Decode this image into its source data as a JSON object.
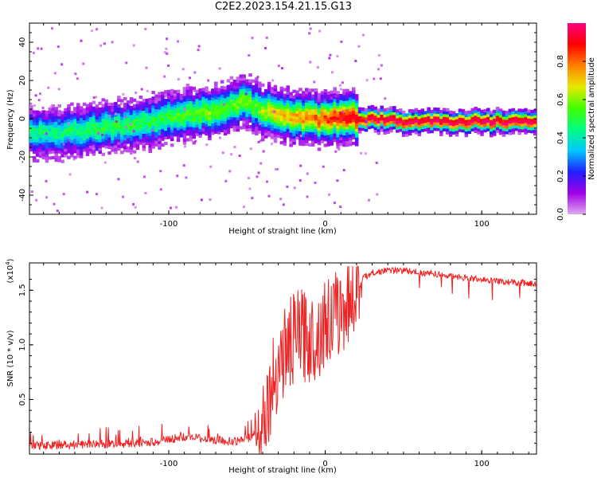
{
  "title": "C2E2.2023.154.21.15.G13",
  "chart_data": [
    {
      "type": "heatmap",
      "xlabel": "Height of straight line (km)",
      "ylabel": "Frequency (Hz)",
      "xlim": [
        -189,
        135
      ],
      "ylim": [
        -50,
        50
      ],
      "x_ticks": [
        -100,
        0,
        100
      ],
      "y_ticks": [
        -40,
        -20,
        0,
        20,
        40
      ],
      "colorbar": {
        "label": "Normalized spectral amplitude",
        "range": [
          0,
          1
        ],
        "ticks": [
          "0.0",
          "0.2",
          "0.4",
          "0.6",
          "0.8"
        ],
        "tick_values": [
          0,
          0.2,
          0.4,
          0.6,
          0.8
        ],
        "colormap": [
          "#e0a8f0",
          "#a000e8",
          "#2020ff",
          "#00c8ff",
          "#00ff80",
          "#40ff00",
          "#e8e800",
          "#ff8000",
          "#ff0000",
          "#ff0080"
        ]
      },
      "ridge": {
        "x": [
          -189,
          -170,
          -150,
          -130,
          -110,
          -90,
          -75,
          -62,
          -52,
          -45,
          -35,
          -20,
          -5,
          10,
          30,
          60,
          90,
          135
        ],
        "center_hz": [
          -7,
          -8,
          -6,
          -4,
          -2,
          2,
          3,
          6,
          9,
          5,
          2,
          0,
          -1,
          0,
          -1,
          -2,
          -2,
          -2
        ],
        "amplitude": [
          0.45,
          0.45,
          0.5,
          0.5,
          0.5,
          0.55,
          0.6,
          0.55,
          0.6,
          0.55,
          0.7,
          0.75,
          0.8,
          0.9,
          1.0,
          1.0,
          1.0,
          1.0
        ]
      }
    },
    {
      "type": "line",
      "xlabel": "Height of straight line (km)",
      "ylabel": "SNR (10 * v/v)",
      "scale_label": "(x10",
      "scale_exp": "4",
      "unit_tail": ")",
      "xlim": [
        -189,
        135
      ],
      "ylim": [
        0,
        1.75
      ],
      "x_ticks": [
        -100,
        0,
        100
      ],
      "y_ticks": [
        "0.5",
        "1.0",
        "1.5"
      ],
      "y_tick_values": [
        0.5,
        1.0,
        1.5
      ],
      "line_color": "#ee2222",
      "series": [
        {
          "x": [
            -189,
            -160,
            -130,
            -110,
            -100,
            -90,
            -75,
            -60,
            -50,
            -44,
            -40,
            -35,
            -30,
            -25,
            -20,
            -15,
            -10,
            -5,
            0,
            5,
            10,
            15,
            18,
            22,
            25,
            30,
            40,
            50,
            60,
            70,
            80,
            90,
            100,
            110,
            120,
            135
          ],
          "y": [
            0.06,
            0.07,
            0.08,
            0.09,
            0.12,
            0.14,
            0.12,
            0.1,
            0.12,
            0.18,
            0.35,
            0.55,
            0.85,
            0.95,
            1.05,
            1.1,
            1.05,
            1.1,
            1.2,
            1.25,
            1.3,
            1.4,
            1.45,
            1.55,
            1.62,
            1.66,
            1.68,
            1.68,
            1.66,
            1.65,
            1.63,
            1.61,
            1.6,
            1.58,
            1.57,
            1.56
          ]
        }
      ]
    }
  ]
}
